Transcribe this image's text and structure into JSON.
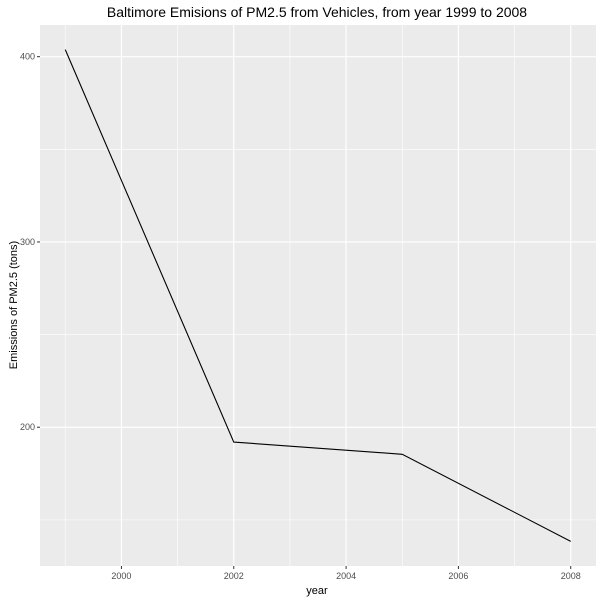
{
  "chart_data": {
    "type": "line",
    "title": "Baltimore Emisions of PM2.5 from Vehicles, from year 1999 to 2008",
    "xlabel": "year",
    "ylabel": "Emissions of PM2.5 (tons)",
    "x": [
      1999,
      2002,
      2005,
      2008
    ],
    "series": [
      {
        "values": [
          403.8,
          192.0,
          185.4,
          138.4
        ]
      }
    ],
    "xlim": [
      1998.55,
      2008.45
    ],
    "ylim": [
      125.1,
      417.1
    ],
    "x_ticks": [
      2000,
      2002,
      2004,
      2006,
      2008
    ],
    "x_tick_labels": [
      "2000",
      "2002",
      "2004",
      "2006",
      "2008"
    ],
    "x_minor_ticks": [
      1999,
      2001,
      2003,
      2005,
      2007
    ],
    "y_ticks": [
      200,
      300,
      400
    ],
    "y_tick_labels": [
      "200",
      "300",
      "400"
    ],
    "y_minor_ticks": [
      150,
      250,
      350
    ],
    "grid": true,
    "legend": "none",
    "colors": {
      "panel": "#ebebeb",
      "grid": "#ffffff",
      "line": "#000000",
      "tick": "#333333"
    }
  }
}
